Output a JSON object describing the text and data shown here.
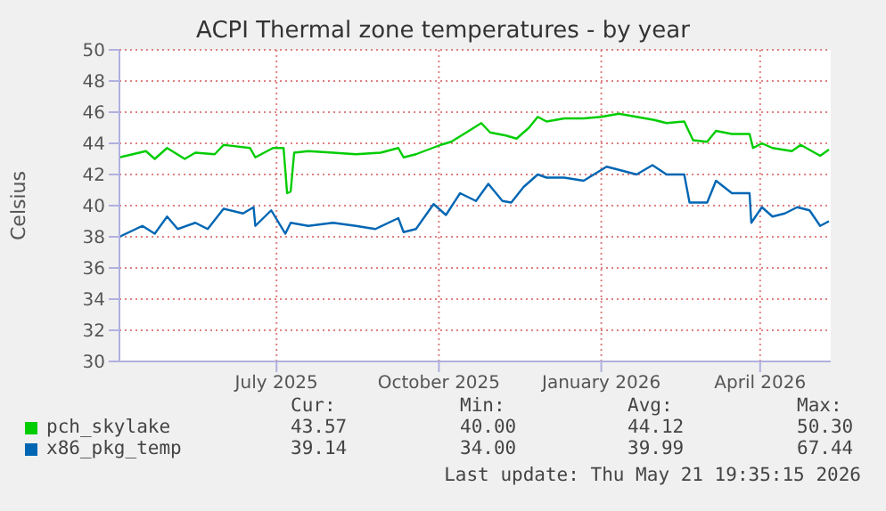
{
  "chart_data": {
    "type": "line",
    "title": "ACPI Thermal zone temperatures - by year",
    "ylabel": "Celsius",
    "xlim": [
      "2025-04-17",
      "2026-05-25"
    ],
    "xticks": [
      {
        "value": "2025-07-15",
        "label": "July 2025"
      },
      {
        "value": "2025-10-15",
        "label": "October 2025"
      },
      {
        "value": "2026-01-15",
        "label": "January 2026"
      },
      {
        "value": "2026-04-15",
        "label": "April 2026"
      }
    ],
    "ylim": [
      30,
      50
    ],
    "yticks": [
      30,
      32,
      34,
      36,
      38,
      40,
      42,
      44,
      46,
      48,
      50
    ],
    "grid": true,
    "legend": "bottom",
    "series": [
      {
        "name": "pch_skylake",
        "color": "#00cc00",
        "x": [
          "2025-04-17",
          "2025-05-02",
          "2025-05-07",
          "2025-05-14",
          "2025-05-24",
          "2025-05-30",
          "2025-06-10",
          "2025-06-15",
          "2025-06-30",
          "2025-07-03",
          "2025-07-13",
          "2025-07-19",
          "2025-07-21",
          "2025-07-23",
          "2025-07-25",
          "2025-08-02",
          "2025-08-16",
          "2025-08-29",
          "2025-09-12",
          "2025-09-22",
          "2025-09-25",
          "2025-10-02",
          "2025-10-16",
          "2025-10-22",
          "2025-11-01",
          "2025-11-08",
          "2025-11-13",
          "2025-11-22",
          "2025-11-28",
          "2025-12-05",
          "2025-12-10",
          "2025-12-15",
          "2025-12-25",
          "2026-01-05",
          "2026-01-15",
          "2026-01-25",
          "2026-02-04",
          "2026-02-14",
          "2026-02-21",
          "2026-03-03",
          "2026-03-08",
          "2026-03-16",
          "2026-03-21",
          "2026-03-30",
          "2026-04-09",
          "2026-04-11",
          "2026-04-16",
          "2026-04-22",
          "2026-05-03",
          "2026-05-08",
          "2026-05-19",
          "2026-05-24"
        ],
        "values": [
          43.1,
          43.5,
          43.0,
          43.7,
          43.0,
          43.4,
          43.3,
          43.9,
          43.7,
          43.1,
          43.7,
          43.7,
          40.8,
          40.9,
          43.4,
          43.5,
          43.4,
          43.3,
          43.4,
          43.7,
          43.1,
          43.3,
          43.9,
          44.1,
          44.8,
          45.3,
          44.7,
          44.5,
          44.3,
          45.0,
          45.7,
          45.4,
          45.6,
          45.6,
          45.7,
          45.9,
          45.7,
          45.5,
          45.3,
          45.4,
          44.2,
          44.1,
          44.8,
          44.6,
          44.6,
          43.7,
          44.0,
          43.7,
          43.5,
          43.9,
          43.2,
          43.6
        ]
      },
      {
        "name": "x86_pkg_temp",
        "color": "#0066b3",
        "x": [
          "2025-04-17",
          "2025-04-30",
          "2025-05-07",
          "2025-05-14",
          "2025-05-20",
          "2025-05-30",
          "2025-06-06",
          "2025-06-15",
          "2025-06-26",
          "2025-07-02",
          "2025-07-03",
          "2025-07-12",
          "2025-07-20",
          "2025-07-23",
          "2025-08-02",
          "2025-08-16",
          "2025-08-29",
          "2025-09-09",
          "2025-09-22",
          "2025-09-25",
          "2025-10-02",
          "2025-10-12",
          "2025-10-17",
          "2025-10-19",
          "2025-10-27",
          "2025-11-05",
          "2025-11-12",
          "2025-11-20",
          "2025-11-25",
          "2025-12-02",
          "2025-12-10",
          "2025-12-15",
          "2025-12-25",
          "2026-01-05",
          "2026-01-18",
          "2026-01-25",
          "2026-02-04",
          "2026-02-13",
          "2026-02-21",
          "2026-03-03",
          "2026-03-06",
          "2026-03-16",
          "2026-03-21",
          "2026-03-30",
          "2026-04-09",
          "2026-04-10",
          "2026-04-16",
          "2026-04-22",
          "2026-04-29",
          "2026-05-06",
          "2026-05-13",
          "2026-05-19",
          "2026-05-24"
        ],
        "values": [
          38.0,
          38.7,
          38.2,
          39.3,
          38.5,
          38.9,
          38.5,
          39.8,
          39.5,
          39.9,
          38.7,
          39.7,
          38.2,
          38.9,
          38.7,
          38.9,
          38.7,
          38.5,
          39.2,
          38.3,
          38.5,
          40.1,
          39.6,
          39.4,
          40.8,
          40.3,
          41.4,
          40.3,
          40.2,
          41.2,
          42.0,
          41.8,
          41.8,
          41.6,
          42.5,
          42.3,
          42.0,
          42.6,
          42.0,
          42.0,
          40.2,
          40.2,
          41.6,
          40.8,
          40.8,
          38.9,
          39.9,
          39.3,
          39.5,
          39.9,
          39.7,
          38.7,
          39.0
        ]
      }
    ],
    "annotations": [
      "Cur:",
      "Min:",
      "Avg:",
      "Max:",
      "43.57",
      "40.00",
      "44.12",
      "50.30",
      "39.14",
      "34.00",
      "39.99",
      "67.44",
      "Last update: Thu May 21 19:35:15 2026"
    ]
  }
}
